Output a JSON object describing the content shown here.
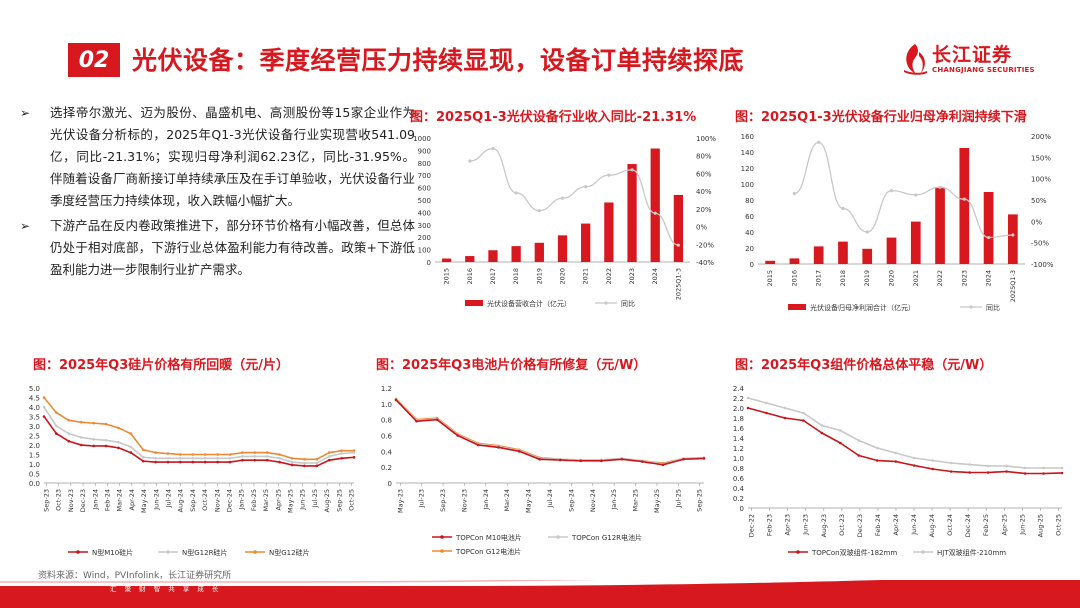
{
  "header": {
    "badge": "02",
    "title": "光伏设备：季度经营压力持续显现，设备订单持续探底",
    "logo_cn": "长江证券",
    "logo_en": "CHANGJIANG SECURITIES",
    "brand_color": "#d7191f"
  },
  "bullets": [
    {
      "mark": "➢",
      "text": "选择帝尔激光、迈为股份、晶盛机电、高测股份等15家企业作为光伏设备分析标的，2025年Q1-3光伏设备行业实现营收541.09亿，同比-21.31%；实现归母净利润62.23亿，同比-31.95%。伴随着设备厂商新接订单持续承压及在手订单验收，光伏设备行业季度经营压力持续体现，收入跌幅小幅扩大。"
    },
    {
      "mark": "➢",
      "text": "下游产品在反内卷政策推进下，部分环节价格有小幅改善，但总体仍处于相对底部，下游行业总体盈利能力有待改善。政策+下游低盈利能力进一步限制行业扩产需求。"
    }
  ],
  "source": "资料来源：Wind，PVInfolink，长江证券研究所",
  "footer": {
    "slogan": "汇 聚 财 智     共 享 成 长"
  },
  "chart_data": [
    {
      "id": "revenue",
      "type": "bar",
      "title": "图：2025Q1-3光伏设备行业收入同比-21.31%",
      "categories": [
        "2015",
        "2016",
        "2017",
        "2018",
        "2019",
        "2020",
        "2021",
        "2022",
        "2023",
        "2024",
        "2025Q1-3"
      ],
      "series": [
        {
          "name": "光伏设备营收合计（亿元）",
          "kind": "bar",
          "axis": "left",
          "color": "#d7191f",
          "values": [
            28,
            48,
            95,
            128,
            155,
            215,
            310,
            480,
            790,
            915,
            541
          ]
        },
        {
          "name": "同比",
          "kind": "line",
          "axis": "right",
          "color": "#c8c8c8",
          "values": [
            null,
            74,
            88,
            38,
            18,
            32,
            45,
            58,
            64,
            15,
            -21
          ]
        }
      ],
      "yleft": {
        "min": 0,
        "max": 1000,
        "ticks": [
          "0",
          "100",
          "200",
          "300",
          "400",
          "500",
          "600",
          "700",
          "800",
          "900",
          "1000"
        ]
      },
      "yright": {
        "min": -40,
        "max": 100,
        "ticks": [
          "-40%",
          "-20%",
          "0%",
          "20%",
          "40%",
          "60%",
          "80%",
          "100%"
        ]
      }
    },
    {
      "id": "profit",
      "type": "bar",
      "title": "图：2025Q1-3光伏设备行业归母净利润持续下滑",
      "categories": [
        "2015",
        "2016",
        "2017",
        "2018",
        "2019",
        "2020",
        "2021",
        "2022",
        "2023",
        "2024",
        "2025Q1-3"
      ],
      "series": [
        {
          "name": "光伏设备归母净利润合计（亿元）",
          "kind": "bar",
          "axis": "left",
          "color": "#d7191f",
          "values": [
            4,
            7,
            22,
            28,
            19,
            33,
            53,
            95,
            145,
            90,
            62
          ]
        },
        {
          "name": "同比",
          "kind": "line",
          "axis": "right",
          "color": "#c8c8c8",
          "values": [
            null,
            65,
            185,
            30,
            -25,
            72,
            62,
            80,
            52,
            -38,
            -32
          ]
        }
      ],
      "yleft": {
        "min": 0,
        "max": 160,
        "ticks": [
          "0",
          "20",
          "40",
          "60",
          "80",
          "100",
          "120",
          "140",
          "160"
        ]
      },
      "yright": {
        "min": -100,
        "max": 200,
        "ticks": [
          "-100%",
          "-50%",
          "0%",
          "50%",
          "100%",
          "150%",
          "200%"
        ]
      }
    },
    {
      "id": "wafer",
      "type": "line",
      "title": "图：2025年Q3硅片价格有所回暖（元/片）",
      "xticks": [
        "Sep-23",
        "Oct-23",
        "Nov-23",
        "Dec-23",
        "Jan-24",
        "Feb-24",
        "Mar-24",
        "Apr-24",
        "May-24",
        "Jun-24",
        "Jul-24",
        "Aug-24",
        "Sep-24",
        "Oct-24",
        "Nov-24",
        "Dec-24",
        "Jan-25",
        "Feb-25",
        "Mar-25",
        "Apr-25",
        "May-25",
        "Jun-25",
        "Jul-25",
        "Aug-25",
        "Sep-25",
        "Oct-25"
      ],
      "y": {
        "min": 0,
        "max": 5,
        "ticks": [
          "0.0",
          "0.5",
          "1.0",
          "1.5",
          "2.0",
          "2.5",
          "3.0",
          "3.5",
          "4.0",
          "4.5",
          "5.0"
        ]
      },
      "series": [
        {
          "name": "N型M10硅片",
          "color": "#c8151c",
          "values": [
            3.5,
            2.6,
            2.2,
            2.0,
            1.95,
            1.95,
            1.85,
            1.6,
            1.15,
            1.1,
            1.1,
            1.1,
            1.1,
            1.1,
            1.1,
            1.1,
            1.2,
            1.2,
            1.2,
            1.1,
            0.95,
            0.9,
            0.9,
            1.2,
            1.3,
            1.35
          ]
        },
        {
          "name": "N型G12R硅片",
          "color": "#c8c8c8",
          "values": [
            4.0,
            3.0,
            2.6,
            2.4,
            2.3,
            2.25,
            2.15,
            1.9,
            1.35,
            1.3,
            1.3,
            1.3,
            1.3,
            1.3,
            1.3,
            1.3,
            1.4,
            1.4,
            1.4,
            1.3,
            1.1,
            1.05,
            1.05,
            1.4,
            1.55,
            1.6
          ]
        },
        {
          "name": "N型G12硅片",
          "color": "#ee8833",
          "values": [
            4.5,
            3.7,
            3.3,
            3.2,
            3.15,
            3.1,
            2.9,
            2.6,
            1.75,
            1.6,
            1.55,
            1.5,
            1.5,
            1.5,
            1.5,
            1.5,
            1.6,
            1.6,
            1.6,
            1.5,
            1.3,
            1.25,
            1.25,
            1.6,
            1.7,
            1.7
          ]
        }
      ]
    },
    {
      "id": "cell",
      "type": "line",
      "title": "图：2025年Q3电池片价格有所修复（元/W）",
      "xticks": [
        "May-23",
        "Jul-23",
        "Sep-23",
        "Nov-23",
        "Jan-24",
        "Mar-24",
        "May-24",
        "Jul-24",
        "Sep-24",
        "Nov-24",
        "Jan-25",
        "Mar-25",
        "May-25",
        "Jul-25",
        "Sep-25"
      ],
      "y": {
        "min": 0,
        "max": 1.2,
        "ticks": [
          "0",
          "0.2",
          "0.4",
          "0.6",
          "0.8",
          "1.0",
          "1.2"
        ]
      },
      "series": [
        {
          "name": "TOPCon M10电池片",
          "color": "#c8151c",
          "values": [
            1.05,
            0.78,
            0.8,
            0.6,
            0.48,
            0.45,
            0.4,
            0.3,
            0.29,
            0.28,
            0.28,
            0.3,
            0.27,
            0.23,
            0.3,
            0.31
          ]
        },
        {
          "name": "TOPCon G12R电池片",
          "color": "#c8c8c8",
          "values": [
            1.05,
            0.79,
            0.81,
            0.61,
            0.49,
            0.46,
            0.41,
            0.31,
            0.3,
            0.29,
            0.29,
            0.31,
            0.28,
            0.24,
            0.31,
            0.32
          ]
        },
        {
          "name": "TOPCon G12电池片",
          "color": "#ee8833",
          "values": [
            1.06,
            0.8,
            0.82,
            0.62,
            0.5,
            0.47,
            0.42,
            0.32,
            0.3,
            0.29,
            0.29,
            0.31,
            0.28,
            0.25,
            0.31,
            0.32
          ]
        }
      ]
    },
    {
      "id": "module",
      "type": "line",
      "title": "图：2025年Q3组件价格总体平稳（元/W）",
      "xticks": [
        "Dec-22",
        "Feb-23",
        "Apr-23",
        "Jun-23",
        "Aug-23",
        "Oct-23",
        "Dec-23",
        "Feb-24",
        "Apr-24",
        "Jun-24",
        "Aug-24",
        "Oct-24",
        "Dec-24",
        "Feb-25",
        "Apr-25",
        "Jun-25",
        "Aug-25",
        "Oct-25"
      ],
      "y": {
        "min": 0,
        "max": 2.4,
        "ticks": [
          "0",
          "0.2",
          "0.4",
          "0.6",
          "0.8",
          "1.0",
          "1.2",
          "1.4",
          "1.6",
          "1.8",
          "2.0",
          "2.2",
          "2.4"
        ]
      },
      "series": [
        {
          "name": "TOPCon双玻组件-182mm",
          "color": "#c8151c",
          "values": [
            2.0,
            1.9,
            1.8,
            1.75,
            1.5,
            1.3,
            1.05,
            0.95,
            0.93,
            0.85,
            0.78,
            0.73,
            0.71,
            0.71,
            0.73,
            0.69,
            0.69,
            0.7
          ]
        },
        {
          "name": "HJT双玻组件-210mm",
          "color": "#c8c8c8",
          "values": [
            2.2,
            2.1,
            2.0,
            1.9,
            1.65,
            1.55,
            1.35,
            1.2,
            1.1,
            1.0,
            0.95,
            0.9,
            0.87,
            0.84,
            0.84,
            0.8,
            0.8,
            0.8
          ]
        }
      ]
    }
  ]
}
